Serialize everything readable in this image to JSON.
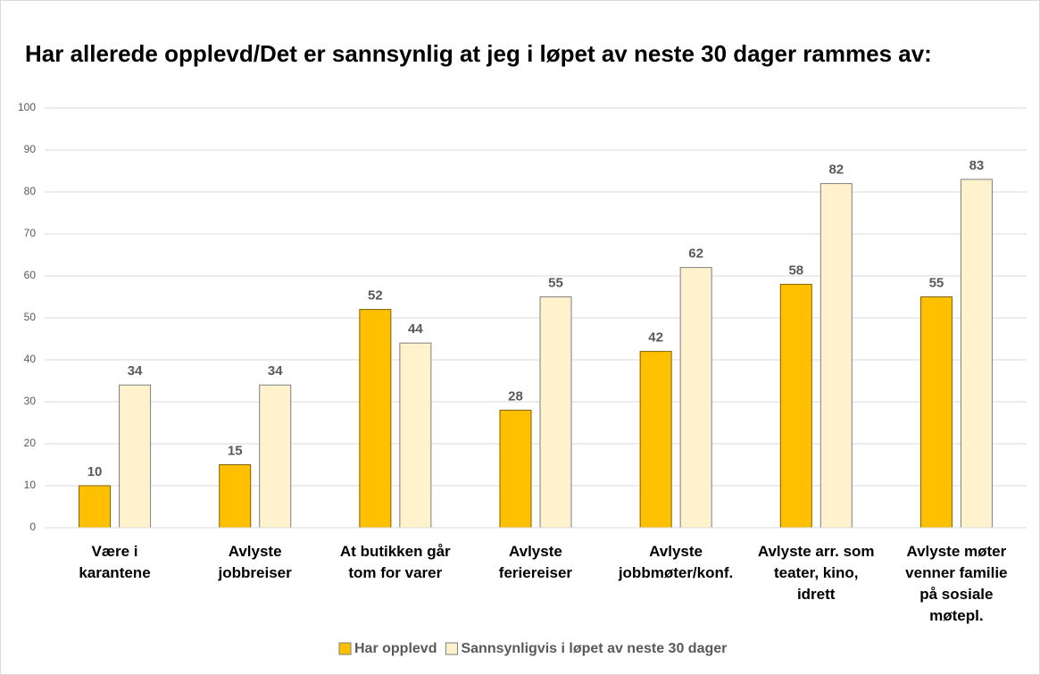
{
  "chart_data": {
    "type": "bar",
    "title": "Har allerede opplevd/Det er sannsynlig at jeg i løpet av neste 30 dager rammes av:",
    "categories": [
      "Være i\nkarantene",
      "Avlyste\njobbreiser",
      "At butikken går\ntom for varer",
      "Avlyste\nferiereiser",
      "Avlyste\njobbmøter/konf.",
      "Avlyste arr. som\nteater, kino,\nidrett",
      "Avlyste møter\nvenner familie\npå sosiale\nmøtepl."
    ],
    "series": [
      {
        "name": "Har opplevd",
        "color": "#FFC000",
        "values": [
          10,
          15,
          52,
          28,
          42,
          58,
          55
        ]
      },
      {
        "name": "Sannsynligvis i løpet av neste 30 dager",
        "color": "#FFF2CC",
        "values": [
          34,
          34,
          44,
          55,
          62,
          82,
          83
        ]
      }
    ],
    "ylim": [
      0,
      100
    ],
    "yticks": [
      0,
      10,
      20,
      30,
      40,
      50,
      60,
      70,
      80,
      90,
      100
    ],
    "grid": true,
    "legend": "bottom"
  }
}
